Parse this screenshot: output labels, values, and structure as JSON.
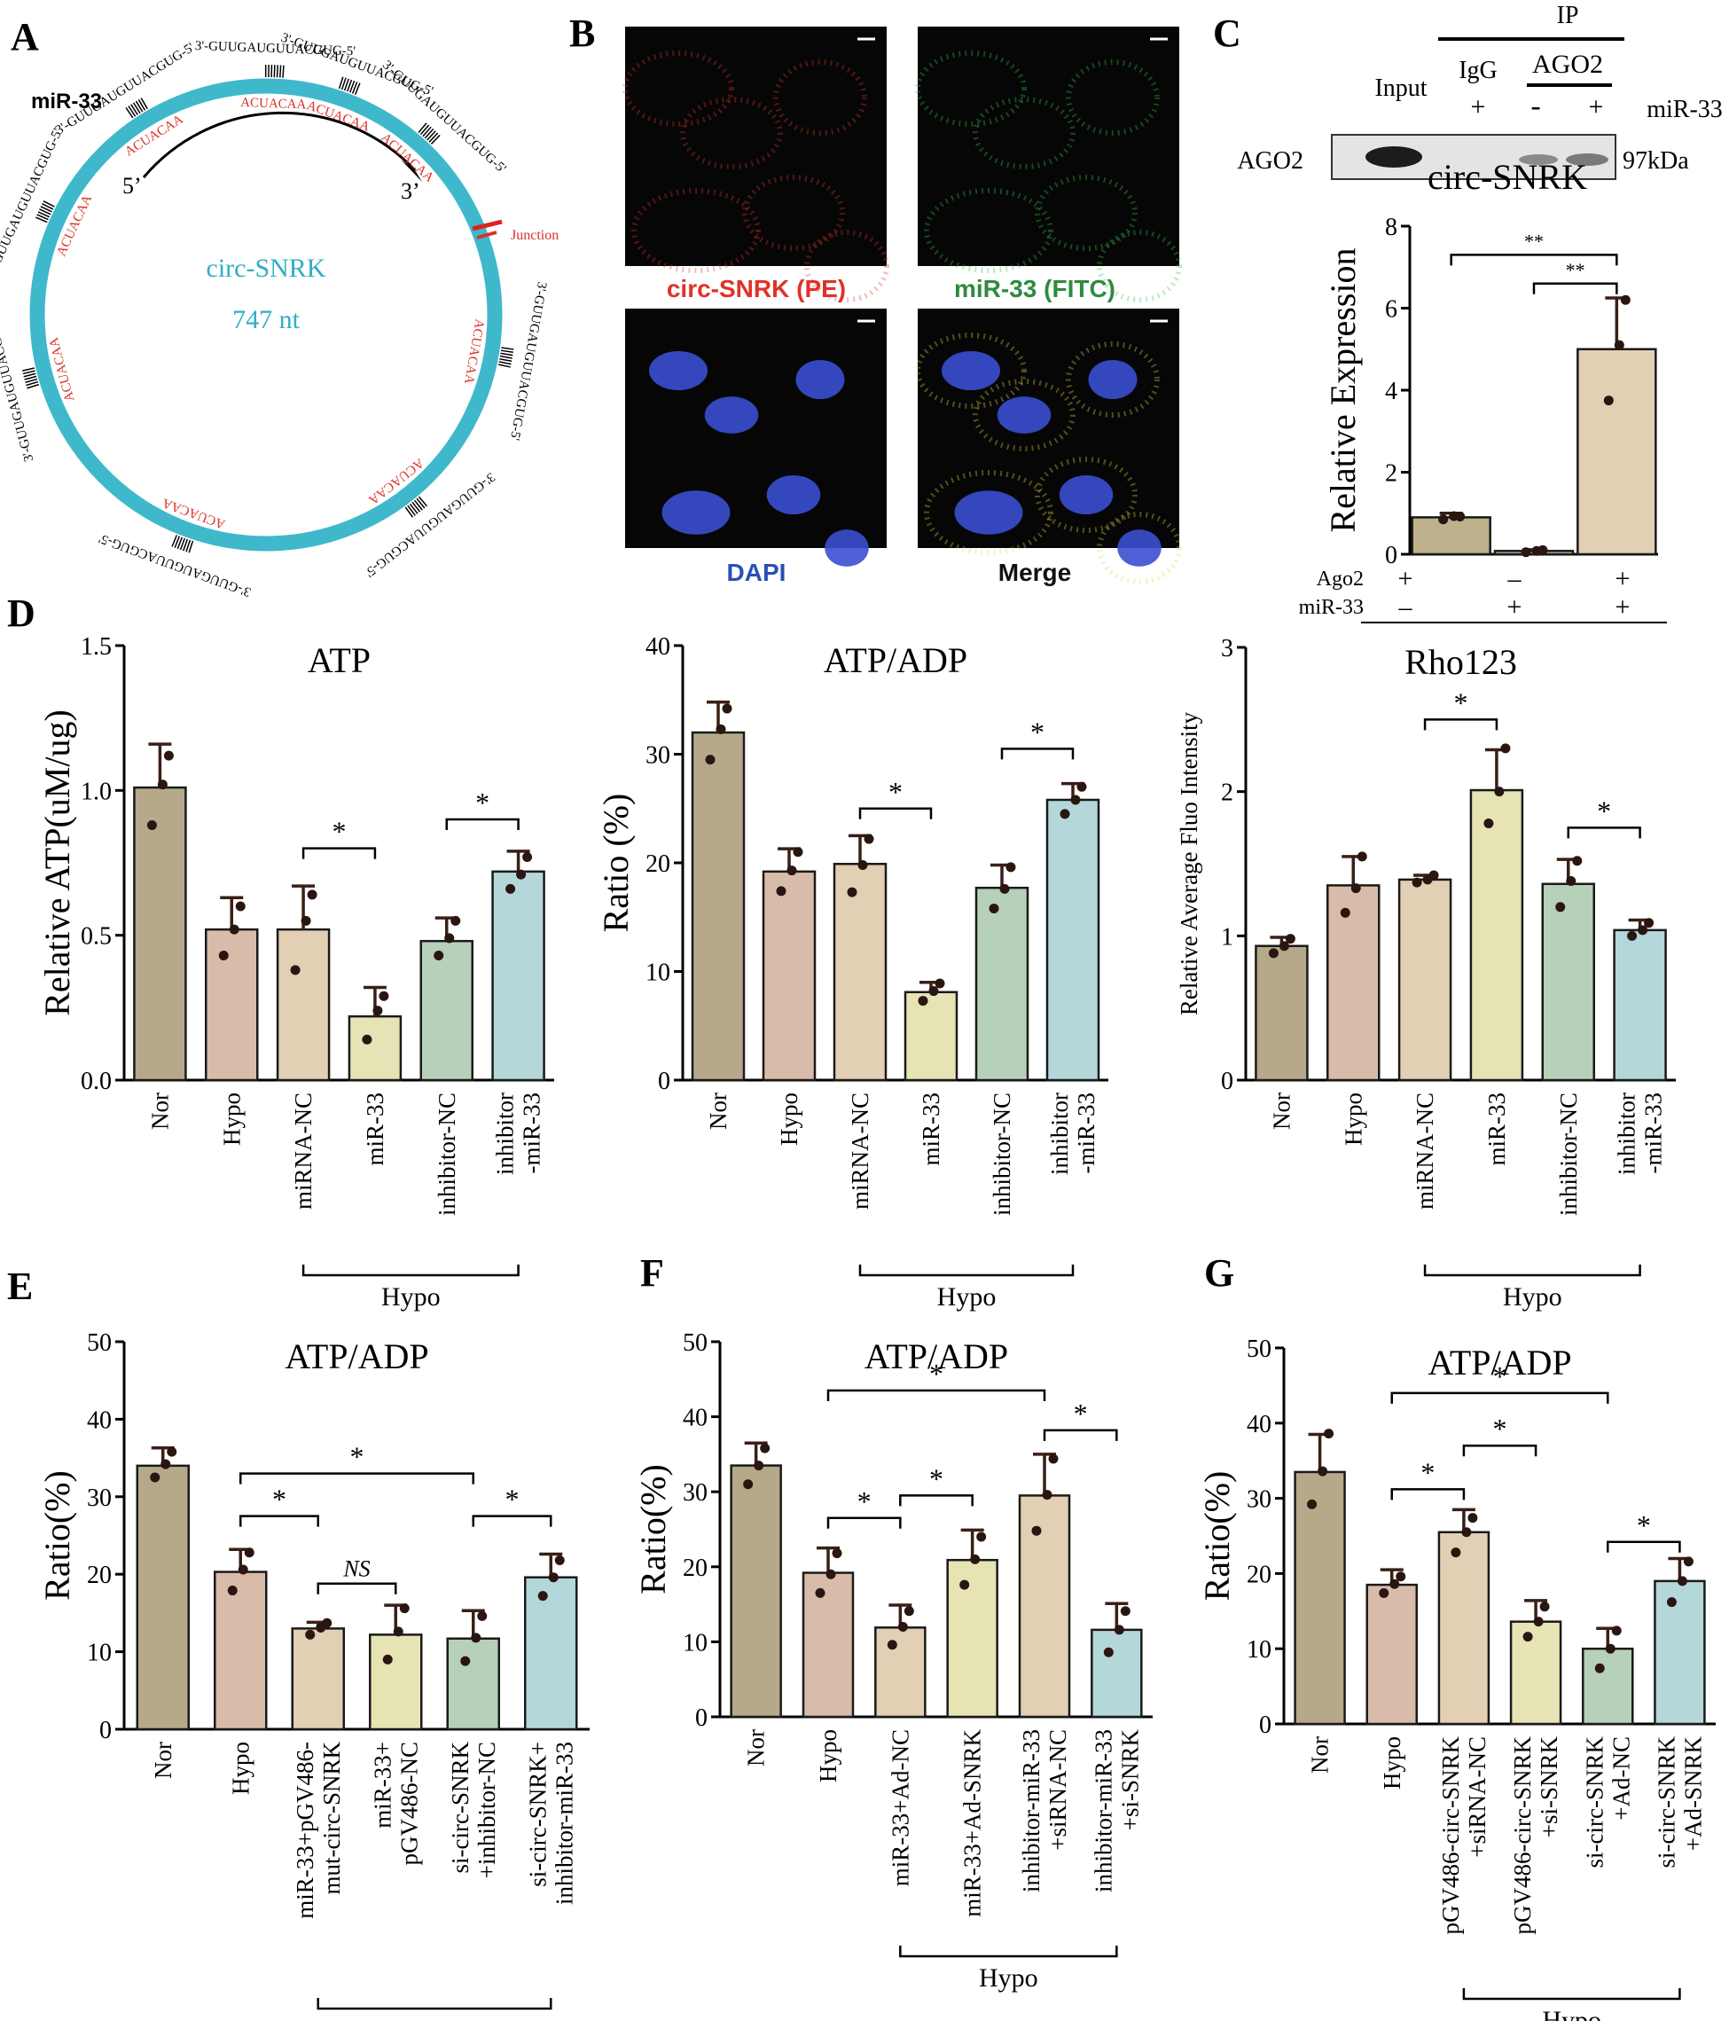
{
  "panel_letters": [
    "A",
    "B",
    "C",
    "D",
    "E",
    "F",
    "G"
  ],
  "panelA": {
    "circ_name": "circ-SNRK",
    "length": "747 nt",
    "mirna": "miR-33",
    "junction": "Junction",
    "five_prime": "5’",
    "three_prime": "3’",
    "mirna_seq": "3'-GUUGAUGUUACGUG-5'",
    "site_seq": "ACUACAA",
    "colors": {
      "ring": "#3fb8cc",
      "site": "#d9322a"
    }
  },
  "panelB": {
    "labels": [
      "circ-SNRK (PE)",
      "miR-33 (FITC)",
      "DAPI",
      "Merge"
    ],
    "label_colors": [
      "#e0322a",
      "#2e8b3e",
      "#2b4fb8",
      "#111111"
    ]
  },
  "panelC": {
    "ip": "IP",
    "input": "Input",
    "igg": "IgG",
    "ago2": "AGO2",
    "mir33": "miR-33",
    "blot_signs": [
      "+",
      "-",
      "+"
    ],
    "row_label": "AGO2",
    "kda": "97kDa",
    "row_signs": {
      "ago2_label": "Ago2",
      "mir_label": "miR-33",
      "ago2": [
        "+",
        "–",
        "+"
      ],
      "mir": [
        "–",
        "+",
        "+"
      ]
    }
  },
  "group_label": "Hypo",
  "chart_data": [
    {
      "id": "C",
      "type": "bar",
      "title": "circ-SNRK",
      "ylabel": "Relative Expression",
      "ylim": [
        0,
        8
      ],
      "yticks": [
        0,
        2,
        4,
        6,
        8
      ],
      "tick_format": "int",
      "categories": [
        "",
        "",
        ""
      ],
      "values": [
        0.9,
        0.08,
        5.0
      ],
      "errors": [
        0.1,
        0.03,
        1.25
      ],
      "points": [
        [
          0.85,
          0.93,
          0.92
        ],
        [
          0.05,
          0.08,
          0.1
        ],
        [
          3.75,
          5.1,
          6.2
        ]
      ],
      "colors": [
        "#bdb28c",
        "#d8b9a8",
        "#e3cfb4"
      ],
      "sig": [
        {
          "a": 0,
          "b": 2,
          "label": "**",
          "y": 7.3
        },
        {
          "a": 1,
          "b": 2,
          "label": "**",
          "y": 6.6
        }
      ],
      "groups": []
    },
    {
      "id": "D1",
      "type": "bar",
      "title": "ATP",
      "ylabel": "Relative ATP(uM/ug)",
      "ylim": [
        0,
        1.5
      ],
      "yticks": [
        0,
        0.5,
        1.0,
        1.5
      ],
      "tick_format": "1f",
      "categories": [
        "Nor",
        "Hypo",
        "miRNA-NC",
        "miR-33",
        "inhibitor-NC",
        "inhibitor\n-miR-33"
      ],
      "values": [
        1.01,
        0.52,
        0.52,
        0.22,
        0.48,
        0.72
      ],
      "errors": [
        0.15,
        0.11,
        0.15,
        0.1,
        0.08,
        0.07
      ],
      "points": [
        [
          0.88,
          1.02,
          1.12
        ],
        [
          0.43,
          0.52,
          0.6
        ],
        [
          0.38,
          0.55,
          0.64
        ],
        [
          0.14,
          0.24,
          0.29
        ],
        [
          0.43,
          0.49,
          0.55
        ],
        [
          0.66,
          0.71,
          0.77
        ]
      ],
      "colors": [
        "#b5a98a",
        "#d9bba9",
        "#e2cfb4",
        "#e6e3b4",
        "#b7d0b9",
        "#b4d7da"
      ],
      "sig": [
        {
          "a": 2,
          "b": 3,
          "label": "*",
          "y": 0.8
        },
        {
          "a": 4,
          "b": 5,
          "label": "*",
          "y": 0.9
        }
      ],
      "groups": [
        {
          "a": 2,
          "b": 5
        }
      ]
    },
    {
      "id": "D2",
      "type": "bar",
      "title": "ATP/ADP",
      "ylabel": "Ratio (%)",
      "ylim": [
        0,
        40
      ],
      "yticks": [
        0,
        10,
        20,
        30,
        40
      ],
      "tick_format": "int",
      "categories": [
        "Nor",
        "Hypo",
        "miRNA-NC",
        "miR-33",
        "inhibitor-NC",
        "inhibitor\n-miR-33"
      ],
      "values": [
        32,
        19.2,
        19.9,
        8.1,
        17.7,
        25.8
      ],
      "errors": [
        2.8,
        2.1,
        2.6,
        0.9,
        2.1,
        1.5
      ],
      "points": [
        [
          29.5,
          32.3,
          34.2
        ],
        [
          17.4,
          19.3,
          21.0
        ],
        [
          17.3,
          19.8,
          22.2
        ],
        [
          7.3,
          8.2,
          8.9
        ],
        [
          15.8,
          17.6,
          19.6
        ],
        [
          24.5,
          25.8,
          27.0
        ]
      ],
      "colors": [
        "#b5a98a",
        "#d9bba9",
        "#e2cfb4",
        "#e6e3b4",
        "#b7d0b9",
        "#b4d7da"
      ],
      "sig": [
        {
          "a": 2,
          "b": 3,
          "label": "*",
          "y": 25
        },
        {
          "a": 4,
          "b": 5,
          "label": "*",
          "y": 30.5
        }
      ],
      "groups": [
        {
          "a": 2,
          "b": 5
        }
      ]
    },
    {
      "id": "D3",
      "type": "bar",
      "title": "Rho123",
      "ylabel": "Relative Average Fluo Intensity",
      "ylim": [
        0,
        3
      ],
      "yticks": [
        0,
        1,
        2,
        3
      ],
      "tick_format": "int",
      "categories": [
        "Nor",
        "Hypo",
        "miRNA-NC",
        "miR-33",
        "inhibitor-NC",
        "inhibitor\n-miR-33"
      ],
      "values": [
        0.93,
        1.35,
        1.39,
        2.01,
        1.36,
        1.04
      ],
      "errors": [
        0.06,
        0.2,
        0.03,
        0.28,
        0.17,
        0.07
      ],
      "points": [
        [
          0.88,
          0.93,
          0.98
        ],
        [
          1.16,
          1.33,
          1.55
        ],
        [
          1.37,
          1.39,
          1.42
        ],
        [
          1.78,
          2.0,
          2.3
        ],
        [
          1.2,
          1.38,
          1.52
        ],
        [
          1.0,
          1.04,
          1.09
        ]
      ],
      "colors": [
        "#b5a98a",
        "#d9bba9",
        "#e2cfb4",
        "#e6e3b4",
        "#b7d0b9",
        "#b4d7da"
      ],
      "sig": [
        {
          "a": 2,
          "b": 3,
          "label": "*",
          "y": 2.5
        },
        {
          "a": 4,
          "b": 5,
          "label": "*",
          "y": 1.75
        }
      ],
      "groups": [
        {
          "a": 2,
          "b": 5
        }
      ]
    },
    {
      "id": "E",
      "type": "bar",
      "title": "ATP/ADP",
      "ylabel": "Ratio(%)",
      "ylim": [
        0,
        50
      ],
      "yticks": [
        0,
        10,
        20,
        30,
        40,
        50
      ],
      "tick_format": "int",
      "categories": [
        "Nor",
        "Hypo",
        "miR-33+pGV486-\nmut-circ-SNRK",
        "miR-33+\npGV486-NC",
        "si-circ-SNRK\n+inhibitor-NC",
        "si-circ-SNRK+\ninhibitor-miR-33"
      ],
      "values": [
        34,
        20.3,
        13,
        12.2,
        11.7,
        19.6
      ],
      "errors": [
        2.3,
        2.9,
        0.8,
        3.8,
        3.6,
        3.0
      ],
      "points": [
        [
          32.5,
          34.2,
          35.8
        ],
        [
          17.9,
          20.6,
          22.8
        ],
        [
          12.2,
          13.1,
          13.7
        ],
        [
          9.0,
          12.6,
          15.6
        ],
        [
          8.8,
          11.8,
          14.6
        ],
        [
          17.2,
          19.6,
          21.8
        ]
      ],
      "colors": [
        "#b5a98a",
        "#d9bba9",
        "#e2cfb4",
        "#e6e3b4",
        "#b7d0b9",
        "#b4d7da"
      ],
      "sig": [
        {
          "a": 1,
          "b": 4,
          "label": "*",
          "y": 33
        },
        {
          "a": 1,
          "b": 2,
          "label": "*",
          "y": 27.5
        },
        {
          "a": 2,
          "b": 3,
          "label": "NS",
          "y": 18.8
        },
        {
          "a": 4,
          "b": 5,
          "label": "*",
          "y": 27.5
        }
      ],
      "groups": [
        {
          "a": 2,
          "b": 5
        }
      ]
    },
    {
      "id": "F",
      "type": "bar",
      "title": "ATP/ADP",
      "ylabel": "Ratio(%)",
      "ylim": [
        0,
        50
      ],
      "yticks": [
        0,
        10,
        20,
        30,
        40,
        50
      ],
      "tick_format": "int",
      "categories": [
        "Nor",
        "Hypo",
        "miR-33+Ad-NC",
        "miR-33+Ad-SNRK",
        "inhibitor-miR-33\n+siRNA-NC",
        "inhibitor-miR-33\n+si-SNRK"
      ],
      "values": [
        33.5,
        19.2,
        11.9,
        20.9,
        29.5,
        11.6
      ],
      "errors": [
        3.0,
        3.3,
        3.0,
        4.0,
        5.5,
        3.5
      ],
      "points": [
        [
          31.0,
          33.5,
          35.8
        ],
        [
          16.5,
          19.0,
          21.8
        ],
        [
          9.6,
          12.0,
          14.1
        ],
        [
          17.6,
          21.0,
          24.0
        ],
        [
          24.8,
          29.6,
          34.4
        ],
        [
          8.6,
          11.6,
          14.1
        ]
      ],
      "colors": [
        "#b5a98a",
        "#d9bba9",
        "#e2cfb4",
        "#e6e3b4",
        "#e2cfb4",
        "#b4d7da"
      ],
      "sig": [
        {
          "a": 1,
          "b": 4,
          "label": "*",
          "y": 43.5
        },
        {
          "a": 4,
          "b": 5,
          "label": "*",
          "y": 38.2
        },
        {
          "a": 1,
          "b": 2,
          "label": "*",
          "y": 26.5
        },
        {
          "a": 2,
          "b": 3,
          "label": "*",
          "y": 29.5
        }
      ],
      "groups": [
        {
          "a": 2,
          "b": 5
        }
      ]
    },
    {
      "id": "G",
      "type": "bar",
      "title": "ATP/ADP",
      "ylabel": "Ratio(%)",
      "ylim": [
        0,
        50
      ],
      "yticks": [
        0,
        10,
        20,
        30,
        40,
        50
      ],
      "tick_format": "int",
      "categories": [
        "Nor",
        "Hypo",
        "pGV486-circ-SNRK\n+siRNA-NC",
        "pGV486-circ-SNRK\n+si-SNRK",
        "si-circ-SNRK\n+Ad-NC",
        "si-circ-SNRK\n+Ad-SNRK"
      ],
      "values": [
        33.5,
        18.5,
        25.5,
        13.6,
        10.0,
        19.0
      ],
      "errors": [
        5.0,
        2.0,
        3.0,
        2.8,
        2.7,
        3.0
      ],
      "points": [
        [
          29.2,
          33.6,
          38.6
        ],
        [
          17.4,
          18.6,
          19.6
        ],
        [
          22.8,
          25.5,
          27.4
        ],
        [
          11.6,
          13.6,
          15.6
        ],
        [
          7.4,
          10.0,
          12.4
        ],
        [
          16.2,
          19.0,
          21.6
        ]
      ],
      "colors": [
        "#b5a98a",
        "#d9bba9",
        "#e2cfb4",
        "#e6e3b4",
        "#b7d0b9",
        "#b4d7da"
      ],
      "sig": [
        {
          "a": 1,
          "b": 4,
          "label": "*",
          "y": 44
        },
        {
          "a": 2,
          "b": 3,
          "label": "*",
          "y": 37
        },
        {
          "a": 1,
          "b": 2,
          "label": "*",
          "y": 31.2
        },
        {
          "a": 4,
          "b": 5,
          "label": "*",
          "y": 24.2
        }
      ],
      "groups": [
        {
          "a": 2,
          "b": 5
        }
      ]
    }
  ]
}
